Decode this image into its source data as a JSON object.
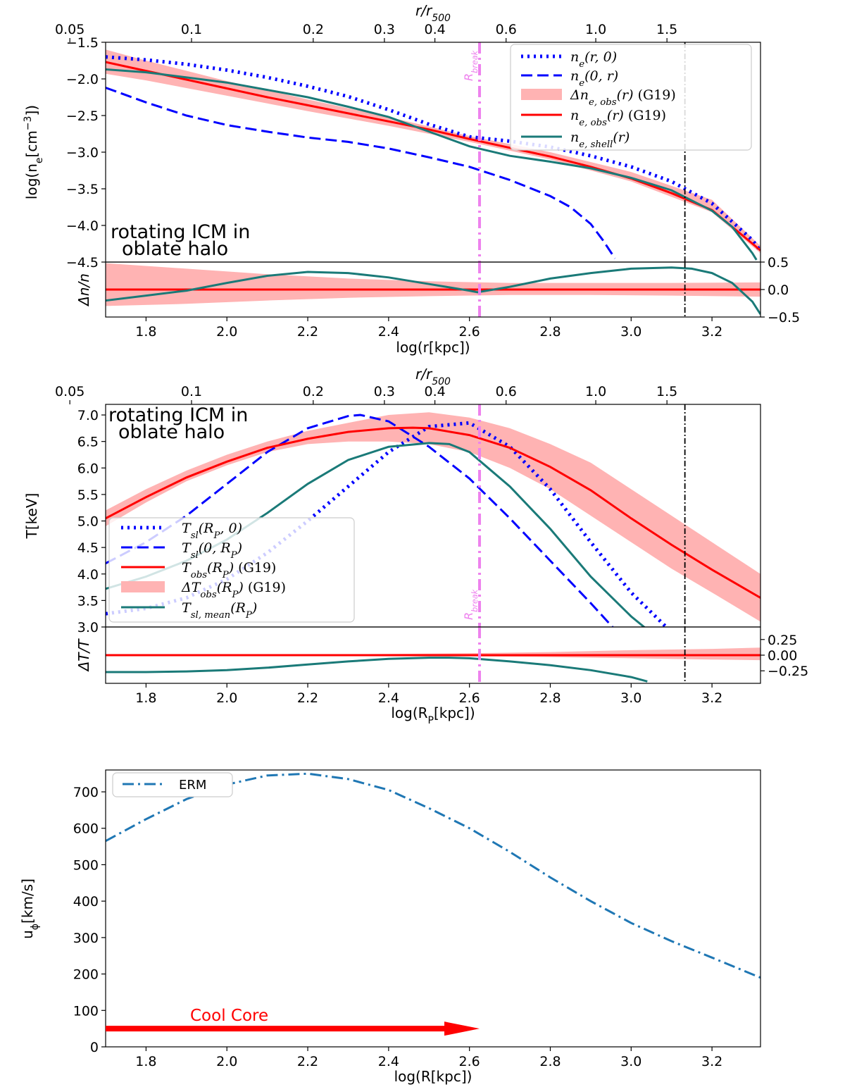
{
  "chart_data": [
    {
      "id": "density",
      "type": "line",
      "xlabel": "log(r[kpc])",
      "ylabel": "log(n_e[cm^-3])",
      "ylabel_display": "log(ne[cm−3])",
      "top_axis_label": "r/r500",
      "top_ticks": [
        {
          "r": 0.05,
          "label": "0.05"
        },
        {
          "r": 0.1,
          "label": "0.1"
        },
        {
          "r": 0.2,
          "label": "0.2"
        },
        {
          "r": 0.3,
          "label": "0.3"
        },
        {
          "r": 0.4,
          "label": "0.4"
        },
        {
          "r": 0.6,
          "label": "0.6"
        },
        {
          "r": 1.0,
          "label": "1.0"
        },
        {
          "r": 1.5,
          "label": "1.5"
        }
      ],
      "xlim": [
        1.7,
        3.32
      ],
      "ylim": [
        -4.5,
        -1.5
      ],
      "xticks": [
        {
          "v": 1.8,
          "label": "1.8"
        },
        {
          "v": 2.0,
          "label": "2.0"
        },
        {
          "v": 2.2,
          "label": "2.2"
        },
        {
          "v": 2.4,
          "label": "2.4"
        },
        {
          "v": 2.6,
          "label": "2.6"
        },
        {
          "v": 2.8,
          "label": "2.8"
        },
        {
          "v": 3.0,
          "label": "3.0"
        },
        {
          "v": 3.2,
          "label": "3.2"
        }
      ],
      "yticks": [
        {
          "v": -1.5,
          "label": "−1.5"
        },
        {
          "v": -2.0,
          "label": "−2.0"
        },
        {
          "v": -2.5,
          "label": "−2.5"
        },
        {
          "v": -3.0,
          "label": "−3.0"
        },
        {
          "v": -3.5,
          "label": "−3.5"
        },
        {
          "v": -4.0,
          "label": "−4.0"
        },
        {
          "v": -4.5,
          "label": "−4.5"
        }
      ],
      "annotation": [
        "rotating ICM in",
        "oblate halo"
      ],
      "rbreak_x": 2.625,
      "r500_x": 3.133,
      "rbreak_label": "Rbreak",
      "band": {
        "name": "Δn_e,obs(r) (G19)",
        "color": "#ffb3b3",
        "x": [
          1.7,
          1.8,
          2.0,
          2.2,
          2.4,
          2.6,
          2.8,
          3.0,
          3.2,
          3.32
        ],
        "lower": [
          -1.93,
          -2.02,
          -2.23,
          -2.44,
          -2.64,
          -2.86,
          -3.1,
          -3.4,
          -3.82,
          -4.38
        ],
        "upper": [
          -1.6,
          -1.75,
          -2.03,
          -2.28,
          -2.52,
          -2.78,
          -3.0,
          -3.27,
          -3.65,
          -4.28
        ]
      },
      "series": [
        {
          "name": "n_e(r,0)",
          "legend": "ne(r, 0)",
          "color": "#0000ff",
          "style": "dotted",
          "width": 5,
          "x": [
            1.7,
            1.8,
            1.9,
            2.0,
            2.1,
            2.2,
            2.3,
            2.4,
            2.5,
            2.6,
            2.7,
            2.8,
            2.9,
            3.0,
            3.1,
            3.2,
            3.3,
            3.32
          ],
          "y": [
            -1.7,
            -1.74,
            -1.8,
            -1.88,
            -1.98,
            -2.1,
            -2.24,
            -2.42,
            -2.62,
            -2.79,
            -2.85,
            -2.93,
            -3.05,
            -3.2,
            -3.4,
            -3.7,
            -4.2,
            -4.35
          ]
        },
        {
          "name": "n_e(0,r)",
          "legend": "ne(0, r)",
          "color": "#0000ff",
          "style": "dashed",
          "width": 3,
          "x": [
            1.7,
            1.8,
            1.9,
            2.0,
            2.1,
            2.2,
            2.3,
            2.4,
            2.5,
            2.6,
            2.7,
            2.8,
            2.85,
            2.9,
            2.93,
            2.96
          ],
          "y": [
            -2.12,
            -2.32,
            -2.5,
            -2.63,
            -2.72,
            -2.8,
            -2.86,
            -2.95,
            -3.07,
            -3.2,
            -3.38,
            -3.6,
            -3.75,
            -3.98,
            -4.2,
            -4.45
          ]
        },
        {
          "name": "n_e,obs(r) (G19)",
          "legend": "ne, obs(r) (G19)",
          "color": "#ff0000",
          "style": "solid",
          "width": 3,
          "x": [
            1.7,
            1.8,
            1.9,
            2.0,
            2.1,
            2.2,
            2.3,
            2.4,
            2.5,
            2.6,
            2.7,
            2.8,
            2.9,
            3.0,
            3.1,
            3.2,
            3.32
          ],
          "y": [
            -1.77,
            -1.89,
            -2.01,
            -2.13,
            -2.25,
            -2.36,
            -2.47,
            -2.58,
            -2.69,
            -2.82,
            -2.94,
            -3.06,
            -3.2,
            -3.36,
            -3.56,
            -3.79,
            -4.34
          ]
        },
        {
          "name": "n_e,shell(r)",
          "legend": "ne, shell(r)",
          "color": "#1a7a78",
          "style": "solid",
          "width": 3,
          "x": [
            1.7,
            1.8,
            1.9,
            2.0,
            2.1,
            2.2,
            2.3,
            2.4,
            2.5,
            2.6,
            2.7,
            2.8,
            2.9,
            3.0,
            3.1,
            3.2,
            3.25,
            3.3,
            3.31
          ],
          "y": [
            -1.87,
            -1.91,
            -1.98,
            -2.05,
            -2.15,
            -2.25,
            -2.38,
            -2.52,
            -2.72,
            -2.92,
            -3.05,
            -3.13,
            -3.22,
            -3.35,
            -3.52,
            -3.8,
            -4.02,
            -4.38,
            -4.47
          ]
        }
      ]
    },
    {
      "id": "density_residual",
      "type": "line",
      "ylabel": "Δn/n",
      "xlim": [
        1.7,
        3.32
      ],
      "ylim": [
        -0.5,
        0.5
      ],
      "yticks": [
        {
          "v": 0.5,
          "label": "0.5"
        },
        {
          "v": 0.0,
          "label": "0.0"
        },
        {
          "v": -0.5,
          "label": "−0.5"
        }
      ],
      "band": {
        "color": "#ffb3b3",
        "x": [
          1.7,
          1.9,
          2.1,
          2.3,
          2.5,
          2.7,
          2.9,
          3.1,
          3.32
        ],
        "lower": [
          -0.3,
          -0.26,
          -0.2,
          -0.15,
          -0.12,
          -0.1,
          -0.1,
          -0.11,
          -0.13
        ],
        "upper": [
          0.48,
          0.38,
          0.28,
          0.2,
          0.15,
          0.12,
          0.12,
          0.12,
          0.13
        ]
      },
      "series": [
        {
          "name": "zero",
          "color": "#ff0000",
          "style": "solid",
          "width": 3,
          "x": [
            1.7,
            3.32
          ],
          "y": [
            0,
            0
          ]
        },
        {
          "name": "n_e,shell residual",
          "color": "#1a7a78",
          "style": "solid",
          "width": 3,
          "x": [
            1.7,
            1.8,
            1.9,
            2.0,
            2.1,
            2.2,
            2.3,
            2.4,
            2.5,
            2.6,
            2.62,
            2.7,
            2.8,
            2.9,
            3.0,
            3.1,
            3.15,
            3.2,
            3.25,
            3.3,
            3.32
          ],
          "y": [
            -0.2,
            -0.11,
            -0.02,
            0.12,
            0.25,
            0.32,
            0.3,
            0.22,
            0.1,
            -0.02,
            -0.05,
            0.05,
            0.2,
            0.3,
            0.38,
            0.4,
            0.38,
            0.3,
            0.12,
            -0.22,
            -0.45
          ]
        }
      ]
    },
    {
      "id": "temperature",
      "type": "line",
      "xlabel": "log(R_P[kpc])",
      "xlabel_display": "log(RP[kpc])",
      "ylabel": "T[keV]",
      "top_axis_label": "r/r500",
      "top_ticks": [
        {
          "r": 0.05,
          "label": "0.05"
        },
        {
          "r": 0.1,
          "label": "0.1"
        },
        {
          "r": 0.2,
          "label": "0.2"
        },
        {
          "r": 0.3,
          "label": "0.3"
        },
        {
          "r": 0.4,
          "label": "0.4"
        },
        {
          "r": 0.6,
          "label": "0.6"
        },
        {
          "r": 1.0,
          "label": "1.0"
        },
        {
          "r": 1.5,
          "label": "1.5"
        }
      ],
      "xlim": [
        1.7,
        3.32
      ],
      "ylim": [
        3.0,
        7.2
      ],
      "yticks": [
        {
          "v": 3.0,
          "label": "3.0"
        },
        {
          "v": 3.5,
          "label": "3.5"
        },
        {
          "v": 4.0,
          "label": "4.0"
        },
        {
          "v": 4.5,
          "label": "4.5"
        },
        {
          "v": 5.0,
          "label": "5.0"
        },
        {
          "v": 5.5,
          "label": "5.5"
        },
        {
          "v": 6.0,
          "label": "6.0"
        },
        {
          "v": 6.5,
          "label": "6.5"
        },
        {
          "v": 7.0,
          "label": "7.0"
        }
      ],
      "annotation": [
        "rotating ICM in",
        "oblate halo"
      ],
      "rbreak_x": 2.625,
      "r500_x": 3.133,
      "rbreak_label": "Rbreak",
      "band": {
        "name": "ΔT_obs(R_P) (G19)",
        "color": "#ffb3b3",
        "x": [
          1.7,
          1.8,
          1.9,
          2.0,
          2.1,
          2.2,
          2.3,
          2.4,
          2.5,
          2.6,
          2.7,
          2.8,
          2.9,
          3.0,
          3.1,
          3.2,
          3.32
        ],
        "lower": [
          4.9,
          5.35,
          5.75,
          6.05,
          6.3,
          6.45,
          6.5,
          6.5,
          6.45,
          6.3,
          6.0,
          5.6,
          5.1,
          4.6,
          4.1,
          3.65,
          3.1
        ],
        "upper": [
          5.2,
          5.6,
          5.95,
          6.25,
          6.5,
          6.7,
          6.85,
          7.0,
          7.05,
          6.95,
          6.75,
          6.45,
          6.1,
          5.6,
          5.1,
          4.6,
          4.0
        ]
      },
      "series": [
        {
          "name": "T_sl(R_P,0)",
          "legend": "Tsl(RP, 0)",
          "color": "#0000ff",
          "style": "dotted",
          "width": 5,
          "x": [
            1.7,
            1.8,
            1.9,
            2.0,
            2.1,
            2.2,
            2.3,
            2.4,
            2.5,
            2.6,
            2.7,
            2.8,
            2.9,
            3.0,
            3.1
          ],
          "y": [
            3.25,
            3.35,
            3.55,
            3.9,
            4.4,
            5.0,
            5.65,
            6.3,
            6.78,
            6.85,
            6.4,
            5.6,
            4.6,
            3.65,
            2.9
          ]
        },
        {
          "name": "T_sl(0,R_P)",
          "legend": "Tsl(0, RP)",
          "color": "#0000ff",
          "style": "dashed",
          "width": 3,
          "x": [
            1.7,
            1.8,
            1.9,
            2.0,
            2.1,
            2.2,
            2.3,
            2.33,
            2.4,
            2.5,
            2.6,
            2.7,
            2.8,
            2.9,
            2.96
          ],
          "y": [
            4.2,
            4.6,
            5.1,
            5.7,
            6.3,
            6.75,
            6.98,
            7.0,
            6.88,
            6.4,
            5.8,
            5.05,
            4.25,
            3.45,
            2.95
          ]
        },
        {
          "name": "T_obs(R_P) (G19)",
          "legend": "Tobs(RP) (G19)",
          "color": "#ff0000",
          "style": "solid",
          "width": 3,
          "x": [
            1.7,
            1.8,
            1.9,
            2.0,
            2.1,
            2.2,
            2.3,
            2.4,
            2.46,
            2.5,
            2.6,
            2.7,
            2.8,
            2.9,
            3.0,
            3.1,
            3.2,
            3.32
          ],
          "y": [
            5.05,
            5.45,
            5.82,
            6.12,
            6.38,
            6.55,
            6.68,
            6.75,
            6.76,
            6.75,
            6.62,
            6.38,
            6.02,
            5.58,
            5.05,
            4.55,
            4.08,
            3.55
          ]
        },
        {
          "name": "T_sl,mean(R_P)",
          "legend": "Tsl, mean(RP)",
          "color": "#1a7a78",
          "style": "solid",
          "width": 3,
          "x": [
            1.7,
            1.8,
            1.9,
            2.0,
            2.1,
            2.2,
            2.3,
            2.4,
            2.5,
            2.55,
            2.6,
            2.7,
            2.8,
            2.9,
            3.0,
            3.04
          ],
          "y": [
            3.72,
            3.95,
            4.25,
            4.65,
            5.15,
            5.7,
            6.15,
            6.4,
            6.47,
            6.45,
            6.3,
            5.65,
            4.85,
            3.95,
            3.2,
            2.95
          ]
        }
      ]
    },
    {
      "id": "temperature_residual",
      "type": "line",
      "ylabel": "ΔT/T",
      "xlim": [
        1.7,
        3.32
      ],
      "ylim": [
        -0.45,
        0.45
      ],
      "xticks": [
        {
          "v": 1.8,
          "label": "1.8"
        },
        {
          "v": 2.0,
          "label": "2.0"
        },
        {
          "v": 2.2,
          "label": "2.2"
        },
        {
          "v": 2.4,
          "label": "2.4"
        },
        {
          "v": 2.6,
          "label": "2.6"
        },
        {
          "v": 2.8,
          "label": "2.8"
        },
        {
          "v": 3.0,
          "label": "3.0"
        },
        {
          "v": 3.2,
          "label": "3.2"
        }
      ],
      "yticks": [
        {
          "v": 0.25,
          "label": "0.25"
        },
        {
          "v": 0.0,
          "label": "0.00"
        },
        {
          "v": -0.25,
          "label": "−0.25"
        }
      ],
      "band": {
        "color": "#ffb3b3",
        "x": [
          1.7,
          2.0,
          2.3,
          2.6,
          2.8,
          3.0,
          3.2,
          3.32
        ],
        "lower": [
          -0.015,
          -0.015,
          -0.015,
          -0.02,
          -0.03,
          -0.05,
          -0.07,
          -0.08
        ],
        "upper": [
          0.015,
          0.015,
          0.015,
          0.03,
          0.05,
          0.08,
          0.1,
          0.12
        ]
      },
      "series": [
        {
          "name": "zero",
          "color": "#ff0000",
          "style": "solid",
          "width": 3,
          "x": [
            1.7,
            3.32
          ],
          "y": [
            0,
            0
          ]
        },
        {
          "name": "T_sl,mean residual",
          "color": "#1a7a78",
          "style": "solid",
          "width": 3,
          "x": [
            1.7,
            1.8,
            1.9,
            2.0,
            2.1,
            2.2,
            2.3,
            2.4,
            2.5,
            2.55,
            2.6,
            2.7,
            2.8,
            2.9,
            3.0,
            3.04
          ],
          "y": [
            -0.27,
            -0.27,
            -0.26,
            -0.24,
            -0.2,
            -0.15,
            -0.1,
            -0.06,
            -0.04,
            -0.04,
            -0.05,
            -0.1,
            -0.16,
            -0.24,
            -0.35,
            -0.42
          ]
        }
      ]
    },
    {
      "id": "velocity",
      "type": "line",
      "xlabel": "log(R[kpc])",
      "ylabel": "u_phi[km/s]",
      "ylabel_display": "uϕ[km/s]",
      "xlim": [
        1.7,
        3.32
      ],
      "ylim": [
        0,
        760
      ],
      "xticks": [
        {
          "v": 1.8,
          "label": "1.8"
        },
        {
          "v": 2.0,
          "label": "2.0"
        },
        {
          "v": 2.2,
          "label": "2.2"
        },
        {
          "v": 2.4,
          "label": "2.4"
        },
        {
          "v": 2.6,
          "label": "2.6"
        },
        {
          "v": 2.8,
          "label": "2.8"
        },
        {
          "v": 3.0,
          "label": "3.0"
        },
        {
          "v": 3.2,
          "label": "3.2"
        }
      ],
      "yticks": [
        {
          "v": 0,
          "label": "0"
        },
        {
          "v": 100,
          "label": "100"
        },
        {
          "v": 200,
          "label": "200"
        },
        {
          "v": 300,
          "label": "300"
        },
        {
          "v": 400,
          "label": "400"
        },
        {
          "v": 500,
          "label": "500"
        },
        {
          "v": 600,
          "label": "600"
        },
        {
          "v": 700,
          "label": "700"
        }
      ],
      "arrow": {
        "label": "Cool Core",
        "x_start": 1.7,
        "x_end": 2.625,
        "y": 50,
        "color": "#ff0000"
      },
      "series": [
        {
          "name": "ERM",
          "legend": "ERM",
          "color": "#1f77b4",
          "style": "dashdot",
          "width": 3,
          "x": [
            1.7,
            1.8,
            1.9,
            2.0,
            2.1,
            2.2,
            2.3,
            2.4,
            2.5,
            2.6,
            2.7,
            2.8,
            2.9,
            3.0,
            3.1,
            3.2,
            3.32
          ],
          "y": [
            565,
            625,
            680,
            720,
            745,
            750,
            735,
            705,
            655,
            600,
            535,
            465,
            400,
            340,
            290,
            245,
            190
          ]
        }
      ]
    }
  ]
}
